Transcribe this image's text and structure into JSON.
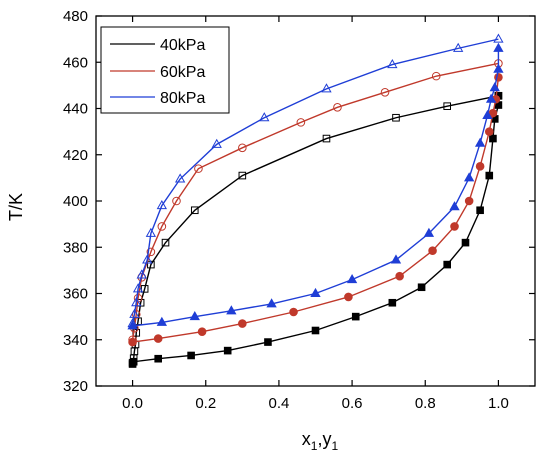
{
  "chart_data": {
    "type": "scatter",
    "xlabel": "x1,y1",
    "ylabel": "T/K",
    "xlim": [
      -0.1,
      1.1
    ],
    "ylim": [
      320,
      480
    ],
    "xticks": [
      0.0,
      0.2,
      0.4,
      0.6,
      0.8,
      1.0
    ],
    "xtick_labels": [
      "0.0",
      "0.2",
      "0.4",
      "0.6",
      "0.8",
      "1.0"
    ],
    "yticks": [
      320,
      340,
      360,
      380,
      400,
      420,
      440,
      460,
      480
    ],
    "ytick_labels": [
      "320",
      "340",
      "360",
      "380",
      "400",
      "420",
      "440",
      "460",
      "480"
    ],
    "grid": false,
    "legend_position": "top-left",
    "series": [
      {
        "name": "40kPa",
        "color": "#000000",
        "liquid_points": [
          [
            0.0,
            329.5
          ],
          [
            0.003,
            330.5
          ],
          [
            0.07,
            331.8
          ],
          [
            0.16,
            333.2
          ],
          [
            0.26,
            335.3
          ],
          [
            0.37,
            339.0
          ],
          [
            0.5,
            344.0
          ],
          [
            0.61,
            350.0
          ],
          [
            0.71,
            356.0
          ],
          [
            0.79,
            362.7
          ],
          [
            0.86,
            372.5
          ],
          [
            0.91,
            382.0
          ],
          [
            0.95,
            396.0
          ],
          [
            0.975,
            411.0
          ],
          [
            0.985,
            427.0
          ],
          [
            0.99,
            435.5
          ],
          [
            1.0,
            441.5
          ],
          [
            1.0,
            445.5
          ]
        ],
        "vapor_points": [
          [
            0.0,
            330.0
          ],
          [
            0.003,
            332.0
          ],
          [
            0.005,
            335.0
          ],
          [
            0.008,
            338.0
          ],
          [
            0.01,
            343.0
          ],
          [
            0.015,
            348.0
          ],
          [
            0.022,
            356.0
          ],
          [
            0.033,
            362.0
          ],
          [
            0.05,
            372.5
          ],
          [
            0.09,
            382.0
          ],
          [
            0.17,
            396.0
          ],
          [
            0.3,
            411.0
          ],
          [
            0.53,
            427.0
          ],
          [
            0.72,
            436.0
          ],
          [
            0.86,
            441.0
          ],
          [
            1.0,
            445.5
          ]
        ]
      },
      {
        "name": "60kPa",
        "color": "#c0392b",
        "liquid_points": [
          [
            0.0,
            339.0
          ],
          [
            0.07,
            340.5
          ],
          [
            0.19,
            343.5
          ],
          [
            0.3,
            347.0
          ],
          [
            0.44,
            352.0
          ],
          [
            0.59,
            358.5
          ],
          [
            0.73,
            367.5
          ],
          [
            0.82,
            378.5
          ],
          [
            0.88,
            389.0
          ],
          [
            0.92,
            400.0
          ],
          [
            0.95,
            415.0
          ],
          [
            0.975,
            430.0
          ],
          [
            0.985,
            438.0
          ],
          [
            0.993,
            444.0
          ],
          [
            1.0,
            453.5
          ]
        ],
        "vapor_points": [
          [
            0.0,
            340.0
          ],
          [
            0.005,
            345.0
          ],
          [
            0.01,
            351.0
          ],
          [
            0.015,
            358.0
          ],
          [
            0.025,
            367.0
          ],
          [
            0.05,
            378.0
          ],
          [
            0.08,
            389.0
          ],
          [
            0.12,
            400.0
          ],
          [
            0.18,
            414.0
          ],
          [
            0.3,
            423.0
          ],
          [
            0.46,
            434.0
          ],
          [
            0.56,
            440.5
          ],
          [
            0.69,
            447.0
          ],
          [
            0.83,
            454.0
          ],
          [
            1.0,
            459.5
          ]
        ]
      },
      {
        "name": "80kPa",
        "color": "#1f3ed6",
        "liquid_points": [
          [
            0.0,
            346.0
          ],
          [
            0.08,
            347.5
          ],
          [
            0.17,
            350.0
          ],
          [
            0.27,
            352.5
          ],
          [
            0.38,
            355.5
          ],
          [
            0.5,
            360.0
          ],
          [
            0.6,
            366.0
          ],
          [
            0.72,
            374.5
          ],
          [
            0.81,
            386.0
          ],
          [
            0.88,
            397.5
          ],
          [
            0.92,
            410.0
          ],
          [
            0.95,
            425.0
          ],
          [
            0.97,
            437.0
          ],
          [
            0.98,
            444.0
          ],
          [
            0.99,
            449.0
          ],
          [
            1.0,
            457.0
          ],
          [
            1.0,
            466.0
          ]
        ],
        "vapor_points": [
          [
            0.0,
            347.0
          ],
          [
            0.005,
            351.0
          ],
          [
            0.01,
            356.0
          ],
          [
            0.015,
            362.0
          ],
          [
            0.025,
            368.0
          ],
          [
            0.04,
            374.5
          ],
          [
            0.05,
            386.0
          ],
          [
            0.08,
            398.0
          ],
          [
            0.13,
            409.5
          ],
          [
            0.23,
            424.5
          ],
          [
            0.36,
            436.0
          ],
          [
            0.53,
            448.5
          ],
          [
            0.71,
            459.0
          ],
          [
            0.89,
            466.0
          ],
          [
            1.0,
            470.0
          ]
        ]
      }
    ]
  }
}
